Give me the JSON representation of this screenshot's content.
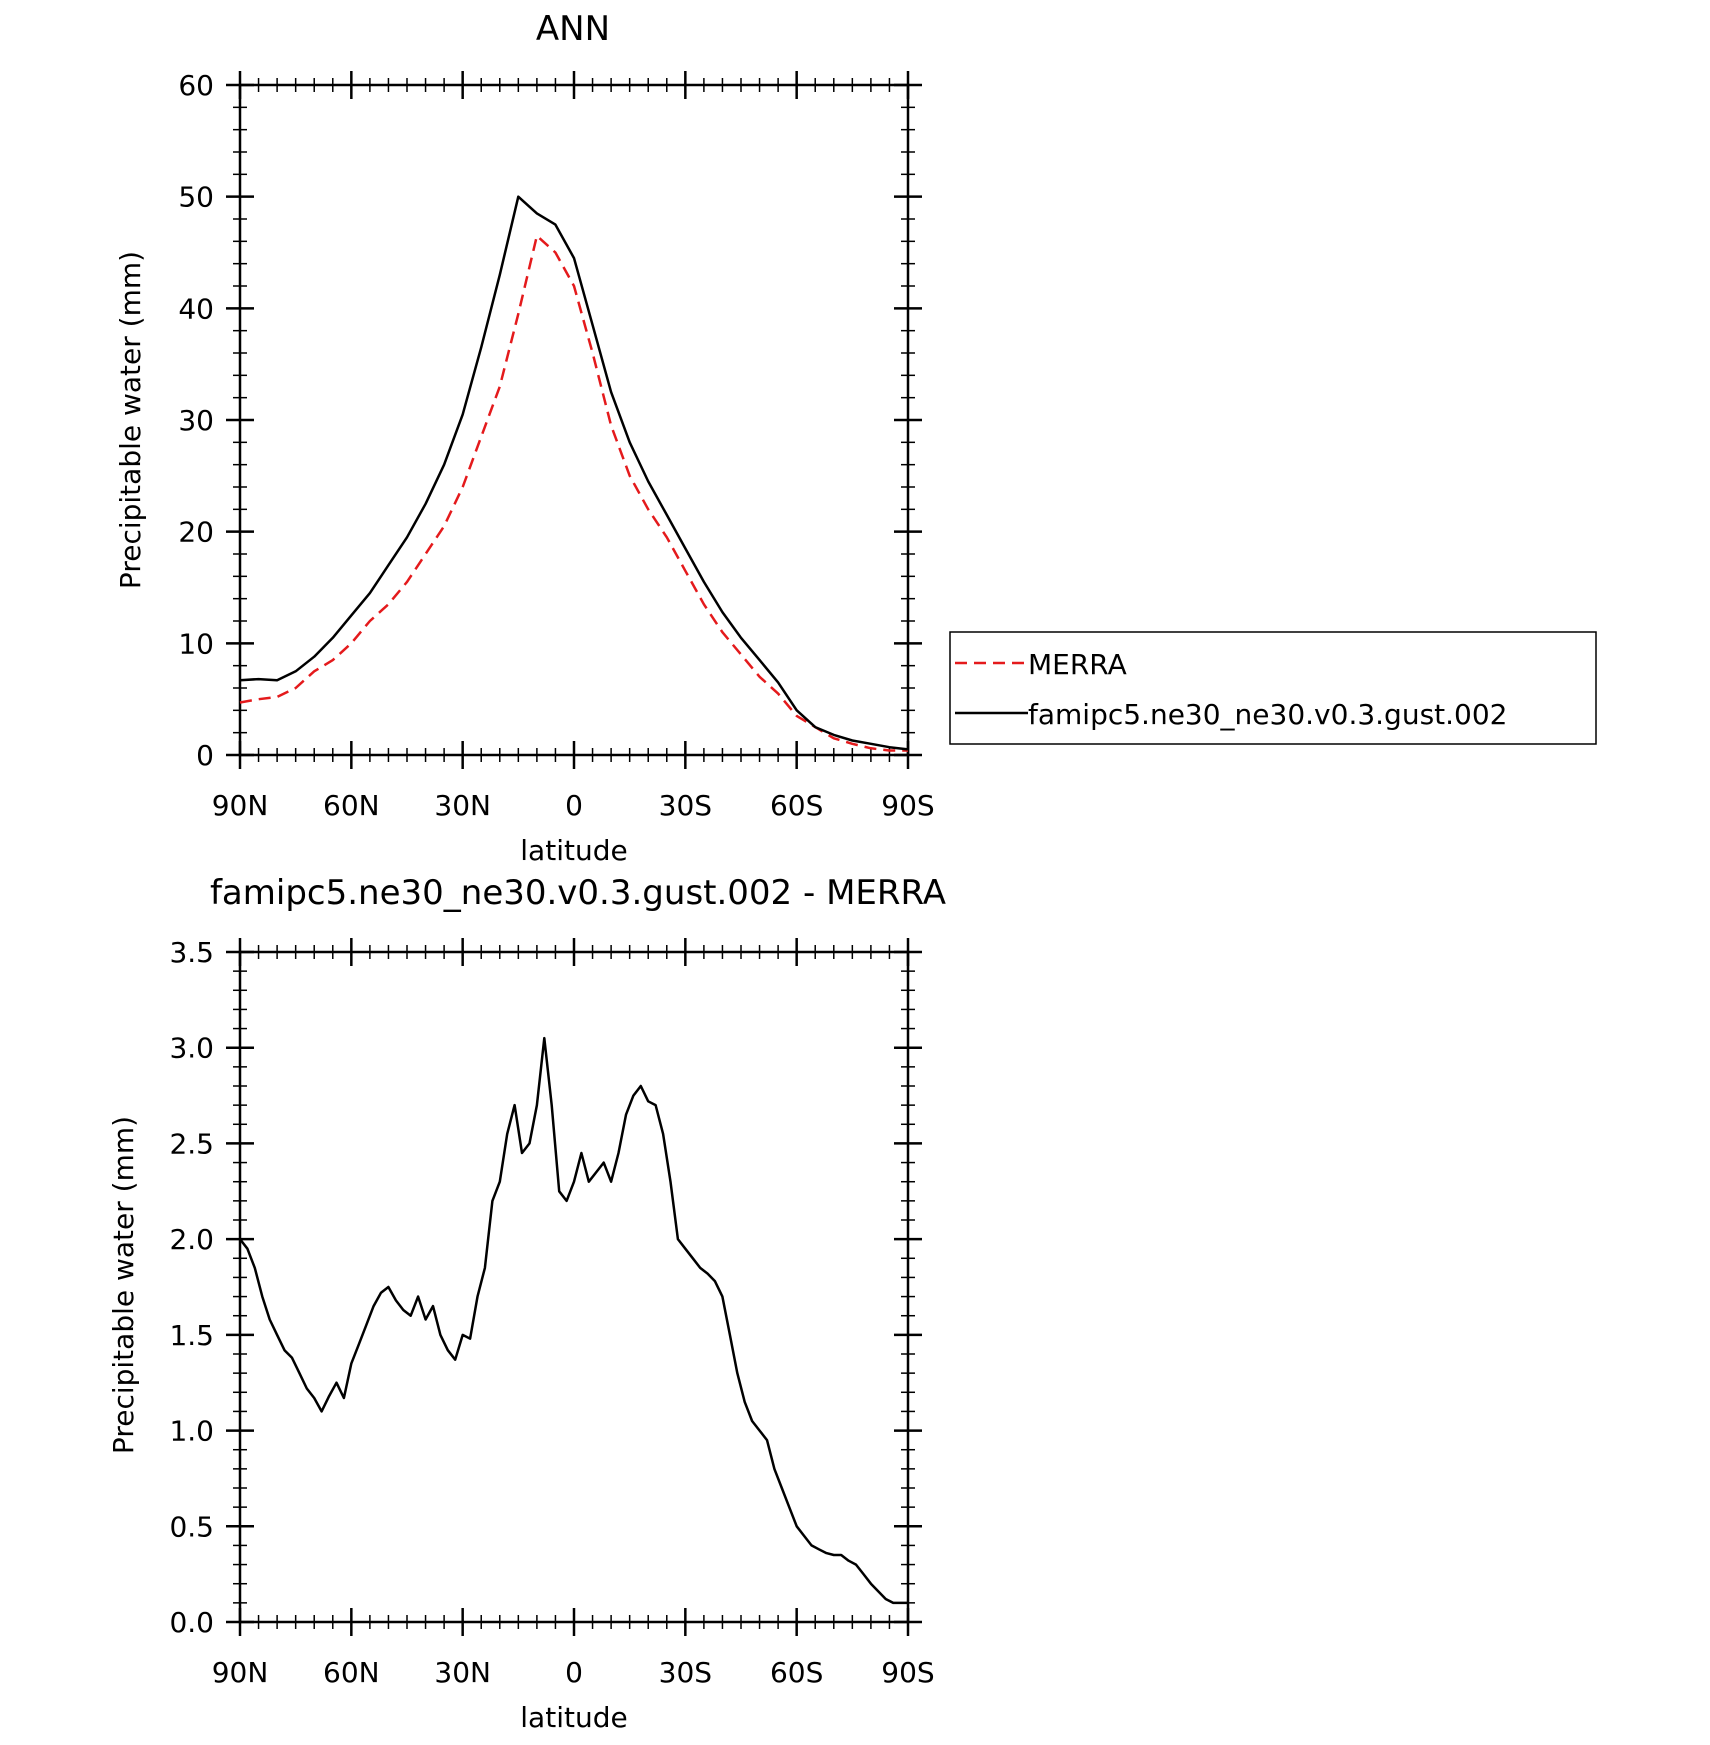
{
  "chart_data": [
    {
      "type": "line",
      "title": "ANN",
      "xlabel": "latitude",
      "ylabel": "Precipitable water (mm)",
      "xlim": [
        90,
        -90
      ],
      "ylim": [
        0,
        60
      ],
      "yticks": [
        0,
        10,
        20,
        30,
        40,
        50,
        60
      ],
      "ytick_labels": [
        "0",
        "10",
        "20",
        "30",
        "40",
        "50",
        "60"
      ],
      "xticks": [
        90,
        60,
        30,
        0,
        -30,
        -60,
        -90
      ],
      "xtick_labels": [
        "90N",
        "60N",
        "30N",
        "0",
        "30S",
        "60S",
        "90S"
      ],
      "grid": false,
      "legend_position": "right",
      "series": [
        {
          "name": "MERRA",
          "color": "#e41a1c",
          "dash": "dashed",
          "x": [
            90,
            85,
            80,
            75,
            70,
            65,
            60,
            55,
            50,
            45,
            40,
            35,
            30,
            25,
            20,
            15,
            10,
            5,
            0,
            -5,
            -10,
            -15,
            -20,
            -25,
            -30,
            -35,
            -40,
            -45,
            -50,
            -55,
            -60,
            -65,
            -70,
            -75,
            -80,
            -85,
            -90
          ],
          "y": [
            4.7,
            5.0,
            5.2,
            6.0,
            7.5,
            8.5,
            10.0,
            12.0,
            13.5,
            15.5,
            18.0,
            20.5,
            24.0,
            28.5,
            33.0,
            39.5,
            46.5,
            45.0,
            42.0,
            36.0,
            29.5,
            25.0,
            22.0,
            19.5,
            16.5,
            13.5,
            11.0,
            9.0,
            7.0,
            5.5,
            3.5,
            2.5,
            1.5,
            1.0,
            0.6,
            0.4,
            0.4
          ]
        },
        {
          "name": "famipc5.ne30_ne30.v0.3.gust.002",
          "color": "#000000",
          "dash": "solid",
          "x": [
            90,
            85,
            80,
            75,
            70,
            65,
            60,
            55,
            50,
            45,
            40,
            35,
            30,
            25,
            20,
            15,
            10,
            5,
            0,
            -5,
            -10,
            -15,
            -20,
            -25,
            -30,
            -35,
            -40,
            -45,
            -50,
            -55,
            -60,
            -65,
            -70,
            -75,
            -80,
            -85,
            -90
          ],
          "y": [
            6.7,
            6.8,
            6.7,
            7.5,
            8.8,
            10.5,
            12.5,
            14.5,
            17.0,
            19.5,
            22.5,
            26.0,
            30.5,
            36.5,
            43.0,
            50.0,
            48.5,
            47.5,
            44.5,
            38.5,
            32.5,
            28.0,
            24.5,
            21.5,
            18.5,
            15.5,
            12.8,
            10.5,
            8.5,
            6.5,
            4.0,
            2.5,
            1.8,
            1.3,
            1.0,
            0.7,
            0.5
          ]
        }
      ]
    },
    {
      "type": "line",
      "title": "famipc5.ne30_ne30.v0.3.gust.002 - MERRA",
      "xlabel": "latitude",
      "ylabel": "Precipitable water (mm)",
      "xlim": [
        90,
        -90
      ],
      "ylim": [
        0,
        3.5
      ],
      "yticks": [
        0,
        0.5,
        1.0,
        1.5,
        2.0,
        2.5,
        3.0,
        3.5
      ],
      "ytick_labels": [
        "0.0",
        "0.5",
        "1.0",
        "1.5",
        "2.0",
        "2.5",
        "3.0",
        "3.5"
      ],
      "xticks": [
        90,
        60,
        30,
        0,
        -30,
        -60,
        -90
      ],
      "xtick_labels": [
        "90N",
        "60N",
        "30N",
        "0",
        "30S",
        "60S",
        "90S"
      ],
      "grid": false,
      "series": [
        {
          "color": "#000000",
          "dash": "solid",
          "x": [
            90,
            88,
            86,
            84,
            82,
            80,
            78,
            76,
            74,
            72,
            70,
            68,
            66,
            64,
            62,
            60,
            58,
            56,
            54,
            52,
            50,
            48,
            46,
            44,
            42,
            40,
            38,
            36,
            34,
            32,
            30,
            28,
            26,
            24,
            22,
            20,
            18,
            16,
            14,
            12,
            10,
            8,
            6,
            4,
            2,
            0,
            -2,
            -4,
            -6,
            -8,
            -10,
            -12,
            -14,
            -16,
            -18,
            -20,
            -22,
            -24,
            -26,
            -28,
            -30,
            -32,
            -34,
            -36,
            -38,
            -40,
            -42,
            -44,
            -46,
            -48,
            -50,
            -52,
            -54,
            -56,
            -58,
            -60,
            -62,
            -64,
            -66,
            -68,
            -70,
            -72,
            -74,
            -76,
            -78,
            -80,
            -82,
            -84,
            -86,
            -88,
            -90
          ],
          "y": [
            2.0,
            1.95,
            1.85,
            1.7,
            1.58,
            1.5,
            1.42,
            1.38,
            1.3,
            1.22,
            1.17,
            1.1,
            1.18,
            1.25,
            1.17,
            1.35,
            1.45,
            1.55,
            1.65,
            1.72,
            1.75,
            1.68,
            1.63,
            1.6,
            1.7,
            1.58,
            1.65,
            1.5,
            1.42,
            1.37,
            1.5,
            1.48,
            1.7,
            1.85,
            2.2,
            2.3,
            2.55,
            2.7,
            2.45,
            2.5,
            2.7,
            3.05,
            2.7,
            2.25,
            2.2,
            2.3,
            2.45,
            2.3,
            2.35,
            2.4,
            2.3,
            2.45,
            2.65,
            2.75,
            2.8,
            2.72,
            2.7,
            2.55,
            2.3,
            2.0,
            1.95,
            1.9,
            1.85,
            1.82,
            1.78,
            1.7,
            1.5,
            1.3,
            1.15,
            1.05,
            1.0,
            0.95,
            0.8,
            0.7,
            0.6,
            0.5,
            0.45,
            0.4,
            0.38,
            0.36,
            0.35,
            0.35,
            0.32,
            0.3,
            0.25,
            0.2,
            0.16,
            0.12,
            0.1,
            0.1,
            0.1
          ]
        }
      ]
    }
  ]
}
